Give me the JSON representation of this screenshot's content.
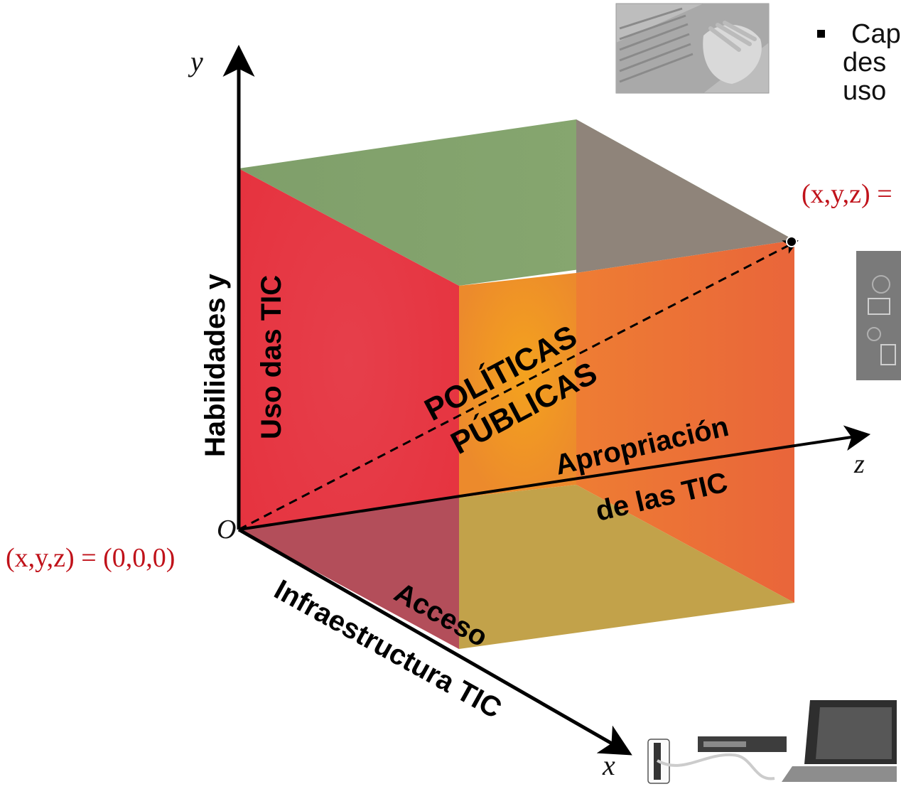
{
  "axes": {
    "y_label": "y",
    "x_label": "x",
    "z_label": "z",
    "origin_label": "O"
  },
  "dimensions": {
    "vertical_line1": "Habilidades y",
    "vertical_line2": "Uso das TIC",
    "z_line1": "Apropriación",
    "z_line2": "de las TIC",
    "x_line1": "Acceso",
    "x_line2": "Infraestructura TIC",
    "center_line1": "POLÍTICAS",
    "center_line2": "PÚBLICAS"
  },
  "coords": {
    "origin": "(x,y,z) = (0,0,0)",
    "target_partial": "(x,y,z) ="
  },
  "bullet": {
    "lines": [
      "Cap",
      "des",
      "uso"
    ]
  },
  "colors": {
    "red_face": "#e8394a",
    "top_face": "#86a56e",
    "back_top": "#8f847a",
    "front_orange": "#f0942a",
    "right_face": "#e96a37",
    "bottom_left": "#b34e5a",
    "bottom_front": "#c2a24a",
    "coord_text": "#c0121a"
  }
}
